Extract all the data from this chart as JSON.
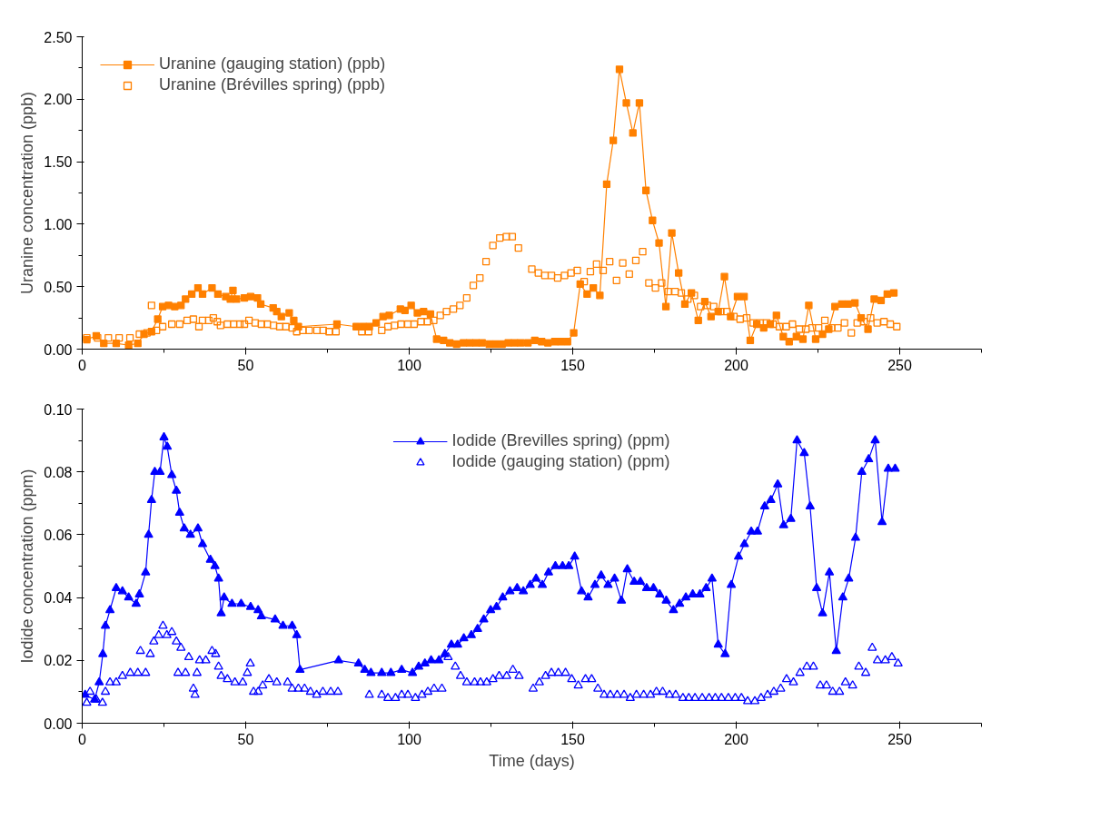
{
  "chart_data": [
    {
      "type": "line",
      "ylabel": "Uranine concentration (ppb)",
      "xlim": [
        0,
        275
      ],
      "ylim": [
        0,
        2.5
      ],
      "xticks": [
        0,
        50,
        100,
        150,
        200,
        250
      ],
      "yticks": [
        {
          "value": 0,
          "label": "0.00"
        },
        {
          "value": 0.5,
          "label": "0.50"
        },
        {
          "value": 1,
          "label": "1.00"
        },
        {
          "value": 1.5,
          "label": "1.50"
        },
        {
          "value": 2,
          "label": "2.00"
        },
        {
          "value": 2.5,
          "label": "2.50"
        }
      ],
      "legend": "top left",
      "series": [
        {
          "name": "Uranine (gauging station) (ppb)",
          "marker": "square",
          "color": "#ff8000",
          "x": [
            1.4,
            4.3,
            6.6,
            10.4,
            14.2,
            17.0,
            18.9,
            21.2,
            23.1,
            24.6,
            26.4,
            28.3,
            30.2,
            31.6,
            33.5,
            35.4,
            36.8,
            39.7,
            41.5,
            43.9,
            45.3,
            46.1,
            47.2,
            49.6,
            51.5,
            53.6,
            54.6,
            58.4,
            59.5,
            60.9,
            63.3,
            64.7,
            66.1,
            77.9,
            83.8,
            85.9,
            87.8,
            89.9,
            92.0,
            93.9,
            97.3,
            98.7,
            100.6,
            102.5,
            104.4,
            106.5,
            108.4,
            110.5,
            112.4,
            114.5,
            116.6,
            118.5,
            120.4,
            122.3,
            124.5,
            126.4,
            128.4,
            130.3,
            132.2,
            134.1,
            136.3,
            138.4,
            140.5,
            142.4,
            144.5,
            146.4,
            148.4,
            150.3,
            152.3,
            154.4,
            156.3,
            158.3,
            160.4,
            162.4,
            164.3,
            166.4,
            168.4,
            170.4,
            172.4,
            174.4,
            176.4,
            178.5,
            180.3,
            182.4,
            184.3,
            186.3,
            188.4,
            190.4,
            192.3,
            194.5,
            196.4,
            198.3,
            200.4,
            202.4,
            204.3,
            206.3,
            208.4,
            210.4,
            212.3,
            214.4,
            216.2,
            218.4,
            220.4,
            222.2,
            224.3,
            226.4,
            228.3,
            230.2,
            232.3,
            234.2,
            236.3,
            238.2,
            240.3,
            242.2,
            244.3,
            246.2,
            248.2
          ],
          "values": [
            0.076,
            0.107,
            0.046,
            0.046,
            0.031,
            0.046,
            0.12,
            0.14,
            0.24,
            0.34,
            0.35,
            0.34,
            0.35,
            0.4,
            0.44,
            0.49,
            0.44,
            0.49,
            0.44,
            0.42,
            0.4,
            0.47,
            0.4,
            0.41,
            0.42,
            0.41,
            0.36,
            0.33,
            0.3,
            0.26,
            0.29,
            0.23,
            0.18,
            0.2,
            0.18,
            0.18,
            0.18,
            0.21,
            0.26,
            0.27,
            0.32,
            0.31,
            0.35,
            0.29,
            0.3,
            0.28,
            0.08,
            0.07,
            0.05,
            0.04,
            0.05,
            0.05,
            0.05,
            0.05,
            0.04,
            0.04,
            0.04,
            0.05,
            0.05,
            0.05,
            0.05,
            0.07,
            0.06,
            0.05,
            0.06,
            0.06,
            0.06,
            0.13,
            0.52,
            0.44,
            0.49,
            0.43,
            1.32,
            1.67,
            2.24,
            1.97,
            1.73,
            1.97,
            1.27,
            1.03,
            0.85,
            0.34,
            0.93,
            0.61,
            0.36,
            0.45,
            0.23,
            0.38,
            0.26,
            0.3,
            0.58,
            0.26,
            0.42,
            0.42,
            0.07,
            0.2,
            0.17,
            0.2,
            0.27,
            0.1,
            0.06,
            0.1,
            0.08,
            0.35,
            0.08,
            0.12,
            0.16,
            0.34,
            0.36,
            0.36,
            0.37,
            0.25,
            0.16,
            0.4,
            0.39,
            0.44,
            0.45
          ]
        },
        {
          "name": "Uranine (Brévilles spring) (ppb)",
          "type": "scatter",
          "marker": "square",
          "color": "#ff8000",
          "x": [
            1.4,
            4.7,
            8.0,
            11.3,
            14.6,
            17.5,
            19.8,
            21.2,
            22.7,
            24.6,
            27.4,
            29.8,
            32.1,
            34.0,
            35.7,
            36.8,
            38.7,
            40.1,
            41.3,
            42.3,
            44.4,
            46.3,
            48.2,
            49.6,
            51.0,
            52.9,
            54.8,
            56.6,
            58.5,
            60.4,
            62.3,
            64.2,
            65.6,
            67.5,
            69.4,
            71.8,
            73.7,
            75.5,
            77.6,
            85.5,
            87.6,
            91.6,
            93.5,
            95.5,
            97.5,
            99.6,
            101.5,
            103.6,
            105.6,
            107.5,
            109.5,
            111.4,
            113.5,
            115.5,
            117.6,
            119.6,
            121.6,
            123.5,
            125.6,
            127.7,
            129.7,
            131.5,
            133.4,
            137.5,
            139.5,
            141.5,
            143.5,
            145.4,
            147.5,
            149.5,
            151.4,
            153.5,
            155.4,
            157.3,
            159.3,
            161.3,
            163.4,
            165.3,
            167.3,
            169.3,
            171.4,
            173.3,
            175.3,
            177.2,
            179.2,
            181.3,
            183.2,
            185.2,
            187.2,
            189.1,
            191.2,
            193.1,
            195.2,
            197.2,
            199.3,
            201.2,
            203.2,
            205.2,
            207.3,
            209.3,
            211.3,
            213.2,
            215.3,
            217.2,
            219.3,
            221.3,
            223.2,
            225.2,
            227.1,
            229.2,
            231.1,
            233.1,
            235.2,
            237.0,
            239.1,
            241.1,
            243.1,
            245.2,
            247.1,
            249.1
          ],
          "values": [
            0.09,
            0.09,
            0.09,
            0.09,
            0.09,
            0.12,
            0.13,
            0.35,
            0.15,
            0.18,
            0.2,
            0.2,
            0.23,
            0.24,
            0.18,
            0.23,
            0.23,
            0.25,
            0.22,
            0.19,
            0.2,
            0.2,
            0.2,
            0.2,
            0.23,
            0.21,
            0.2,
            0.2,
            0.19,
            0.18,
            0.18,
            0.17,
            0.14,
            0.15,
            0.15,
            0.15,
            0.15,
            0.14,
            0.14,
            0.14,
            0.14,
            0.15,
            0.18,
            0.19,
            0.2,
            0.2,
            0.2,
            0.22,
            0.22,
            0.23,
            0.27,
            0.3,
            0.32,
            0.35,
            0.41,
            0.51,
            0.57,
            0.7,
            0.83,
            0.89,
            0.9,
            0.9,
            0.81,
            0.64,
            0.61,
            0.59,
            0.59,
            0.57,
            0.59,
            0.61,
            0.63,
            0.54,
            0.62,
            0.68,
            0.63,
            0.7,
            0.55,
            0.69,
            0.6,
            0.71,
            0.78,
            0.53,
            0.49,
            0.53,
            0.46,
            0.46,
            0.45,
            0.4,
            0.43,
            0.34,
            0.35,
            0.34,
            0.3,
            0.3,
            0.26,
            0.24,
            0.25,
            0.21,
            0.21,
            0.21,
            0.2,
            0.18,
            0.18,
            0.2,
            0.16,
            0.16,
            0.17,
            0.17,
            0.23,
            0.17,
            0.17,
            0.21,
            0.13,
            0.21,
            0.22,
            0.25,
            0.21,
            0.22,
            0.2,
            0.18
          ]
        }
      ]
    },
    {
      "type": "line",
      "xlabel": "Time (days)",
      "ylabel": "Iodide concentration (ppm)",
      "xlim": [
        0,
        275
      ],
      "ylim": [
        0,
        0.1
      ],
      "xticks": [
        0,
        50,
        100,
        150,
        200,
        250
      ],
      "yticks": [
        {
          "value": 0,
          "label": "0.00"
        },
        {
          "value": 0.02,
          "label": "0.02"
        },
        {
          "value": 0.04,
          "label": "0.04"
        },
        {
          "value": 0.06,
          "label": "0.06"
        },
        {
          "value": 0.08,
          "label": "0.08"
        },
        {
          "value": 0.1,
          "label": "0.10"
        }
      ],
      "legend": "top",
      "series": [
        {
          "name": "Iodide (Brevilles spring) (ppm)",
          "marker": "triangle",
          "color": "#0000ff",
          "x": [
            0.9,
            3.8,
            5.2,
            6.3,
            7.1,
            8.5,
            10.4,
            12.3,
            14.2,
            16.5,
            17.5,
            19.4,
            20.3,
            21.2,
            22.2,
            23.8,
            25.0,
            26.0,
            27.4,
            28.8,
            29.8,
            31.2,
            33.1,
            35.4,
            36.8,
            39.2,
            40.6,
            41.7,
            42.5,
            43.4,
            45.8,
            48.6,
            51.5,
            53.8,
            54.8,
            59.0,
            61.4,
            64.2,
            65.6,
            66.6,
            78.4,
            84.5,
            86.4,
            88.3,
            91.6,
            94.4,
            97.7,
            101.0,
            102.9,
            104.8,
            106.7,
            109.1,
            110.9,
            112.9,
            114.8,
            116.7,
            119.0,
            120.9,
            122.8,
            124.9,
            126.7,
            128.6,
            130.8,
            133.0,
            134.9,
            137.0,
            138.8,
            140.7,
            142.6,
            144.7,
            146.9,
            148.8,
            150.6,
            152.7,
            154.7,
            156.8,
            158.7,
            160.8,
            162.8,
            164.9,
            166.7,
            168.8,
            170.7,
            172.6,
            174.7,
            176.6,
            178.6,
            180.8,
            182.7,
            184.6,
            186.7,
            188.9,
            190.8,
            192.6,
            194.5,
            196.6,
            198.5,
            200.7,
            202.5,
            204.6,
            206.5,
            208.7,
            210.6,
            212.7,
            214.5,
            216.7,
            218.6,
            220.8,
            222.6,
            224.6,
            226.4,
            228.5,
            230.6,
            232.6,
            234.4,
            236.5,
            238.4,
            240.5,
            242.5,
            244.6,
            246.5,
            248.6
          ],
          "values": [
            0.009,
            0.0075,
            0.013,
            0.022,
            0.031,
            0.036,
            0.043,
            0.042,
            0.04,
            0.038,
            0.041,
            0.048,
            0.06,
            0.071,
            0.08,
            0.08,
            0.091,
            0.088,
            0.079,
            0.074,
            0.067,
            0.062,
            0.06,
            0.062,
            0.057,
            0.052,
            0.05,
            0.046,
            0.035,
            0.04,
            0.038,
            0.038,
            0.037,
            0.036,
            0.034,
            0.033,
            0.031,
            0.031,
            0.028,
            0.017,
            0.02,
            0.019,
            0.017,
            0.016,
            0.016,
            0.016,
            0.017,
            0.016,
            0.018,
            0.019,
            0.02,
            0.02,
            0.022,
            0.025,
            0.025,
            0.027,
            0.028,
            0.03,
            0.033,
            0.036,
            0.037,
            0.04,
            0.042,
            0.043,
            0.042,
            0.044,
            0.046,
            0.044,
            0.048,
            0.05,
            0.05,
            0.05,
            0.053,
            0.042,
            0.04,
            0.044,
            0.047,
            0.044,
            0.046,
            0.039,
            0.049,
            0.045,
            0.045,
            0.043,
            0.043,
            0.041,
            0.039,
            0.036,
            0.038,
            0.04,
            0.041,
            0.041,
            0.043,
            0.046,
            0.025,
            0.022,
            0.044,
            0.053,
            0.057,
            0.061,
            0.061,
            0.069,
            0.071,
            0.076,
            0.063,
            0.065,
            0.09,
            0.086,
            0.069,
            0.043,
            0.035,
            0.048,
            0.023,
            0.04,
            0.046,
            0.059,
            0.08,
            0.084,
            0.09,
            0.064,
            0.081,
            0.081
          ]
        },
        {
          "name": "Iodide (gauging station) (ppm)",
          "type": "scatter",
          "marker": "triangle",
          "color": "#0000ff",
          "x": [
            1.4,
            2.4,
            4.3,
            6.2,
            7.1,
            8.5,
            10.4,
            12.3,
            14.7,
            17.0,
            17.8,
            19.4,
            20.8,
            21.9,
            23.4,
            24.7,
            25.9,
            27.4,
            28.8,
            29.3,
            30.2,
            31.6,
            32.6,
            34.0,
            34.5,
            35.1,
            35.9,
            37.8,
            39.7,
            40.8,
            41.7,
            42.5,
            44.4,
            46.7,
            49.1,
            50.5,
            51.4,
            52.4,
            53.8,
            55.2,
            57.1,
            59.5,
            62.8,
            64.2,
            66.1,
            68.0,
            69.8,
            71.7,
            73.6,
            76.0,
            78.2,
            87.8,
            91.6,
            93.5,
            95.8,
            97.7,
            99.6,
            101.9,
            103.9,
            105.7,
            107.6,
            110.0,
            111.9,
            114.1,
            115.7,
            117.6,
            120.0,
            121.8,
            123.7,
            125.6,
            127.5,
            129.8,
            131.7,
            133.6,
            137.9,
            139.8,
            141.7,
            143.5,
            145.6,
            147.8,
            149.7,
            151.7,
            153.9,
            155.8,
            157.7,
            159.6,
            161.5,
            163.6,
            165.7,
            167.6,
            169.5,
            171.7,
            173.8,
            175.6,
            177.5,
            179.6,
            181.5,
            183.7,
            185.5,
            187.4,
            189.6,
            191.7,
            193.6,
            195.5,
            197.6,
            199.7,
            201.6,
            203.5,
            205.7,
            207.6,
            209.6,
            211.5,
            213.6,
            215.4,
            217.5,
            219.5,
            221.6,
            223.6,
            225.7,
            227.6,
            229.5,
            231.6,
            233.4,
            235.6,
            237.5,
            239.6,
            241.6,
            243.2,
            245.6,
            247.6,
            249.5
          ],
          "values": [
            0.0065,
            0.01,
            0.0075,
            0.0065,
            0.01,
            0.013,
            0.013,
            0.015,
            0.016,
            0.016,
            0.023,
            0.016,
            0.022,
            0.026,
            0.028,
            0.031,
            0.028,
            0.029,
            0.026,
            0.016,
            0.024,
            0.016,
            0.021,
            0.011,
            0.009,
            0.016,
            0.02,
            0.02,
            0.023,
            0.022,
            0.018,
            0.015,
            0.014,
            0.013,
            0.013,
            0.016,
            0.019,
            0.01,
            0.01,
            0.012,
            0.014,
            0.013,
            0.013,
            0.011,
            0.011,
            0.011,
            0.01,
            0.009,
            0.01,
            0.01,
            0.01,
            0.009,
            0.009,
            0.008,
            0.008,
            0.009,
            0.009,
            0.008,
            0.009,
            0.01,
            0.011,
            0.011,
            0.021,
            0.018,
            0.015,
            0.013,
            0.013,
            0.013,
            0.013,
            0.014,
            0.015,
            0.015,
            0.017,
            0.015,
            0.011,
            0.013,
            0.015,
            0.016,
            0.016,
            0.016,
            0.014,
            0.012,
            0.014,
            0.014,
            0.011,
            0.009,
            0.009,
            0.009,
            0.009,
            0.008,
            0.009,
            0.009,
            0.009,
            0.01,
            0.01,
            0.009,
            0.009,
            0.008,
            0.008,
            0.008,
            0.008,
            0.008,
            0.008,
            0.008,
            0.008,
            0.008,
            0.008,
            0.007,
            0.007,
            0.008,
            0.009,
            0.01,
            0.011,
            0.014,
            0.013,
            0.016,
            0.018,
            0.018,
            0.012,
            0.012,
            0.01,
            0.01,
            0.013,
            0.012,
            0.018,
            0.016,
            0.024,
            0.02,
            0.02,
            0.021,
            0.019
          ]
        }
      ]
    }
  ]
}
